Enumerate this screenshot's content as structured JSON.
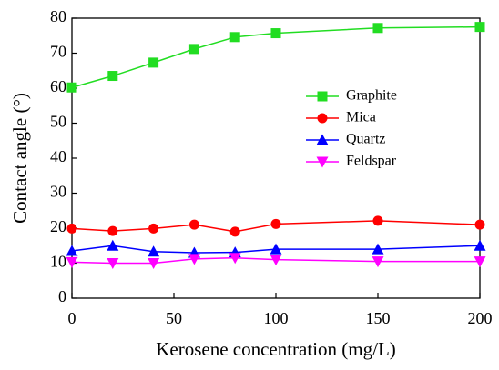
{
  "chart_data": {
    "type": "line",
    "x_label": "Kerosene concentration (mg/L)",
    "y_label": "Contact angle (°)",
    "x": [
      0,
      20,
      40,
      60,
      80,
      100,
      150,
      200
    ],
    "series": [
      {
        "name": "Graphite",
        "color": "#22dd22",
        "marker": "square",
        "values": [
          60.2,
          63.5,
          67.3,
          71.2,
          74.6,
          75.7,
          77.2,
          77.5
        ]
      },
      {
        "name": "Mica",
        "color": "#ff0000",
        "marker": "circle",
        "values": [
          19.9,
          19.2,
          19.9,
          21.0,
          19.0,
          21.2,
          22.1,
          21.0
        ]
      },
      {
        "name": "Quartz",
        "color": "#0000ff",
        "marker": "triangle-up",
        "values": [
          13.5,
          15.0,
          13.3,
          13.0,
          13.1,
          14.0,
          14.0,
          15.0
        ]
      },
      {
        "name": "Feldspar",
        "color": "#ff00ff",
        "marker": "triangle-down",
        "values": [
          10.3,
          10.0,
          10.0,
          11.2,
          11.5,
          11.0,
          10.5,
          10.5
        ]
      }
    ],
    "xlim": [
      0,
      200
    ],
    "xticks": [
      0,
      50,
      100,
      150,
      200
    ],
    "ylim": [
      0,
      80
    ],
    "yticks": [
      0,
      10,
      20,
      30,
      40,
      50,
      60,
      70,
      80
    ]
  }
}
